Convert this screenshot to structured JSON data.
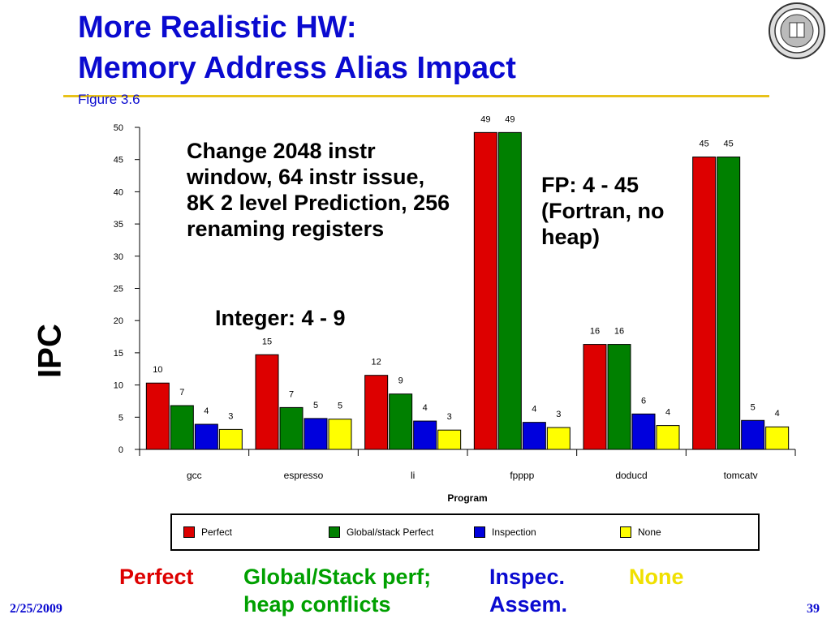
{
  "slide": {
    "title_line1": "More Realistic HW:",
    "title_line2": "Memory Address Alias Impact",
    "subtitle": "Figure 3.6",
    "note1": "Change  2048 instr window, 64 instr issue, 8K 2 level Prediction, 256 renaming registers",
    "note2": "Integer: 4 - 9",
    "note3": "FP: 4 - 45 (Fortran, no heap)",
    "ylabel_big": "IPC",
    "bottom_labels": {
      "perfect": "Perfect",
      "global": "Global/Stack perf; heap conflicts",
      "inspec": "Inspec. Assem.",
      "none": "None"
    },
    "date": "2/25/2009",
    "page": "39"
  },
  "colors": {
    "title": "#0a0ad0",
    "perfect": "#dd0000",
    "global": "#008000",
    "inspection": "#0000dd",
    "none": "#ffff00",
    "bottom_none_text": "#f0e000",
    "bottom_global_text": "#00a000"
  },
  "chart_data": {
    "type": "bar",
    "categories": [
      "gcc",
      "espresso",
      "li",
      "fpppp",
      "doducd",
      "tomcatv"
    ],
    "series": [
      {
        "name": "Perfect",
        "values": [
          10,
          15,
          12,
          49,
          16,
          45
        ]
      },
      {
        "name": "Global/stack Perfect",
        "values": [
          7,
          7,
          9,
          49,
          16,
          45
        ]
      },
      {
        "name": "Inspection",
        "values": [
          4,
          5,
          4,
          4,
          6,
          5
        ]
      },
      {
        "name": "None",
        "values": [
          3,
          5,
          3,
          3,
          4,
          4
        ]
      }
    ],
    "bar_heights_actual": [
      [
        10.3,
        14.7,
        11.5,
        49.2,
        16.3,
        45.4
      ],
      [
        6.8,
        6.5,
        8.6,
        49.2,
        16.3,
        45.4
      ],
      [
        3.9,
        4.8,
        4.4,
        4.2,
        5.5,
        4.5
      ],
      [
        3.1,
        4.7,
        3.0,
        3.4,
        3.7,
        3.5
      ]
    ],
    "xlabel": "Program",
    "ylabel": "",
    "ylim": [
      0,
      50
    ],
    "yticks": [
      0,
      5,
      10,
      15,
      20,
      25,
      30,
      35,
      40,
      45,
      50
    ],
    "legend_position": "bottom"
  }
}
